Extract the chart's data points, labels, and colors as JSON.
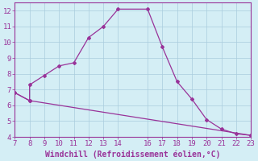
{
  "xlabel": "Windchill (Refroidissement éolien,°C)",
  "line1_x": [
    7,
    8,
    8,
    9,
    10,
    11,
    12,
    13,
    14,
    16,
    17,
    18,
    19,
    20,
    21,
    22,
    23
  ],
  "line1_y": [
    6.8,
    6.3,
    7.3,
    7.9,
    8.5,
    8.7,
    10.3,
    11.0,
    12.1,
    12.1,
    9.7,
    7.5,
    6.4,
    5.1,
    4.5,
    4.2,
    4.1
  ],
  "line2_x": [
    7,
    8,
    23
  ],
  "line2_y": [
    6.8,
    6.3,
    4.1
  ],
  "line_color": "#993399",
  "bg_color": "#d4eef5",
  "grid_color": "#aaccdd",
  "xlim": [
    7,
    23
  ],
  "ylim": [
    4,
    12.5
  ],
  "xticks": [
    7,
    8,
    9,
    10,
    11,
    12,
    13,
    14,
    16,
    17,
    18,
    19,
    20,
    21,
    22,
    23
  ],
  "yticks": [
    4,
    5,
    6,
    7,
    8,
    9,
    10,
    11,
    12
  ],
  "tick_fontsize": 6.5,
  "xlabel_fontsize": 7,
  "marker": "D",
  "markersize": 2.0,
  "linewidth": 0.9
}
